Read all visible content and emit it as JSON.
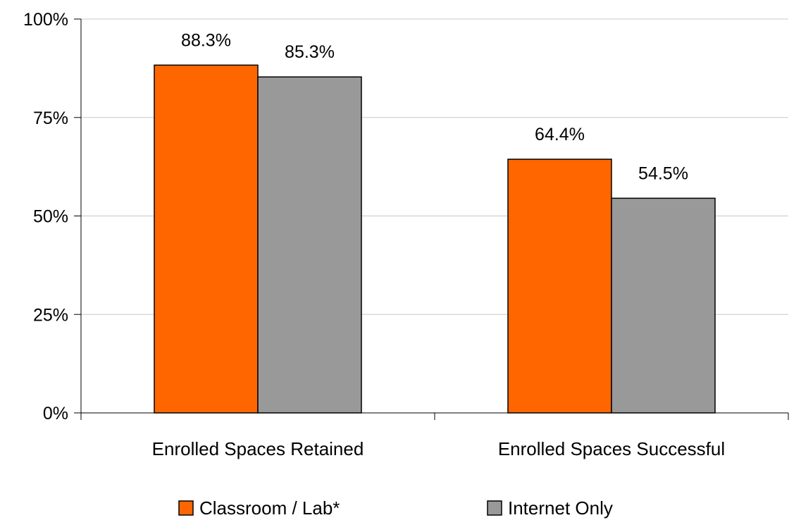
{
  "chart_data": {
    "type": "bar",
    "title": "",
    "xlabel": "",
    "ylabel": "",
    "categories": [
      "Enrolled Spaces Retained",
      "Enrolled Spaces Successful"
    ],
    "series": [
      {
        "name": "Classroom / Lab*",
        "color": "#ff6600",
        "values": [
          88.3,
          64.4
        ],
        "labels": [
          "88.3%",
          "64.4%"
        ]
      },
      {
        "name": "Internet Only",
        "color": "#999999",
        "values": [
          85.3,
          54.5
        ],
        "labels": [
          "85.3%",
          "54.5%"
        ]
      }
    ],
    "ylim": [
      0,
      100
    ],
    "yticks": [
      {
        "value": 0,
        "label": "0%"
      },
      {
        "value": 25,
        "label": "25%"
      },
      {
        "value": 50,
        "label": "50%"
      },
      {
        "value": 75,
        "label": "75%"
      },
      {
        "value": 100,
        "label": "100%"
      }
    ],
    "grid": true,
    "legend_position": "bottom"
  }
}
